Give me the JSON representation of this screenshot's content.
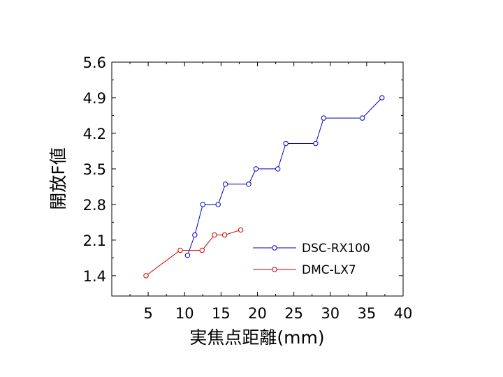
{
  "chart_data": {
    "type": "line",
    "title": "",
    "xlabel": "実焦点距離(mm)",
    "ylabel": "開放F値",
    "xlim": [
      0,
      40
    ],
    "ylim": [
      1.0,
      5.6
    ],
    "xticks": [
      5,
      10,
      15,
      20,
      25,
      30,
      35,
      40
    ],
    "yticks": [
      1.4,
      2.1,
      2.8,
      3.5,
      4.2,
      4.9,
      5.6
    ],
    "x_tick_labels": [
      "5",
      "10",
      "15",
      "20",
      "25",
      "30",
      "35",
      "40"
    ],
    "y_tick_labels": [
      "1.4",
      "2.1",
      "2.8",
      "3.5",
      "4.2",
      "4.9",
      "5.6"
    ],
    "grid": false,
    "legend_position": "bottom-right",
    "marker": "open-circle",
    "series": [
      {
        "name": "DSC-RX100",
        "color": "#0000cc",
        "points": [
          [
            10.4,
            1.8
          ],
          [
            11.4,
            2.2
          ],
          [
            12.5,
            2.8
          ],
          [
            14.6,
            2.8
          ],
          [
            15.6,
            3.2
          ],
          [
            18.8,
            3.2
          ],
          [
            19.8,
            3.5
          ],
          [
            22.8,
            3.5
          ],
          [
            23.9,
            4.0
          ],
          [
            28.0,
            4.0
          ],
          [
            29.1,
            4.5
          ],
          [
            34.4,
            4.5
          ],
          [
            37.1,
            4.9
          ]
        ]
      },
      {
        "name": "DMC-LX7",
        "color": "#cc0000",
        "points": [
          [
            4.7,
            1.4
          ],
          [
            9.4,
            1.9
          ],
          [
            12.4,
            1.9
          ],
          [
            14.1,
            2.2
          ],
          [
            15.5,
            2.2
          ],
          [
            17.7,
            2.3
          ]
        ]
      }
    ]
  }
}
